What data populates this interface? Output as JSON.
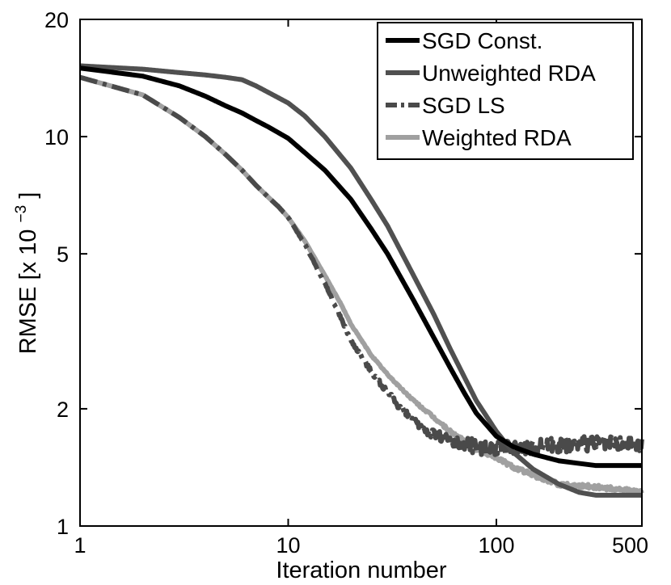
{
  "chart_data": {
    "type": "line",
    "title": "",
    "xlabel": "Iteration number",
    "ylabel_main": "RMSE [x 10",
    "ylabel_exp": "−3",
    "ylabel_close": "]",
    "xscale": "log",
    "yscale": "log",
    "xlim": [
      1,
      500
    ],
    "ylim": [
      1,
      20
    ],
    "grid": false,
    "legend_position": "top-right",
    "x_ticks": [
      {
        "value": 1,
        "label": "1"
      },
      {
        "value": 10,
        "label": "10"
      },
      {
        "value": 100,
        "label": "100"
      },
      {
        "value": 500,
        "label": "500"
      }
    ],
    "y_ticks": [
      {
        "value": 1,
        "label": "1"
      },
      {
        "value": 2,
        "label": "2"
      },
      {
        "value": 5,
        "label": "5"
      },
      {
        "value": 10,
        "label": "10"
      },
      {
        "value": 20,
        "label": "20"
      }
    ],
    "series": [
      {
        "name": "SGD Const.",
        "color": "#000000",
        "dash": "solid",
        "noise": 0,
        "x": [
          1,
          2,
          3,
          4,
          5,
          6,
          7,
          8,
          10,
          12,
          15,
          20,
          25,
          30,
          40,
          50,
          60,
          70,
          80,
          100,
          120,
          150,
          200,
          300,
          500
        ],
        "y": [
          15.0,
          14.3,
          13.5,
          12.7,
          12.0,
          11.5,
          11.0,
          10.6,
          9.9,
          9.1,
          8.2,
          6.9,
          5.8,
          5.0,
          3.8,
          3.05,
          2.55,
          2.2,
          1.95,
          1.7,
          1.6,
          1.53,
          1.47,
          1.43,
          1.43
        ]
      },
      {
        "name": "Unweighted RDA",
        "color": "#505050",
        "dash": "solid",
        "noise": 0,
        "x": [
          1,
          2,
          3,
          4,
          5,
          6,
          7,
          8,
          10,
          12,
          15,
          20,
          25,
          30,
          40,
          50,
          60,
          70,
          80,
          100,
          120,
          150,
          200,
          250,
          300,
          500
        ],
        "y": [
          15.2,
          14.9,
          14.6,
          14.4,
          14.2,
          14.0,
          13.5,
          13.0,
          12.2,
          11.3,
          10.0,
          8.3,
          6.9,
          5.9,
          4.4,
          3.5,
          2.85,
          2.42,
          2.1,
          1.75,
          1.55,
          1.4,
          1.28,
          1.22,
          1.2,
          1.2
        ]
      },
      {
        "name": "SGD LS",
        "color": "#4a4a4a",
        "dash": "dashdot",
        "noise": 0.045,
        "x": [
          1,
          2,
          3,
          4,
          5,
          6,
          7,
          8,
          9,
          10,
          12,
          15,
          18,
          20,
          25,
          30,
          35,
          40,
          50,
          60,
          80,
          100,
          150,
          200,
          300,
          500
        ],
        "y": [
          14.2,
          12.8,
          11.2,
          10.0,
          9.0,
          8.2,
          7.5,
          7.0,
          6.6,
          6.2,
          5.3,
          4.2,
          3.4,
          3.0,
          2.5,
          2.2,
          2.0,
          1.85,
          1.72,
          1.65,
          1.6,
          1.58,
          1.6,
          1.62,
          1.63,
          1.62
        ]
      },
      {
        "name": "Weighted RDA",
        "color": "#a0a0a0",
        "dash": "solid",
        "noise": 0.012,
        "x": [
          1,
          2,
          3,
          4,
          5,
          6,
          7,
          8,
          9,
          10,
          12,
          15,
          18,
          20,
          25,
          30,
          35,
          40,
          50,
          60,
          70,
          80,
          100,
          120,
          150,
          200,
          250,
          300,
          400,
          500
        ],
        "y": [
          14.2,
          12.8,
          11.2,
          10.0,
          9.0,
          8.2,
          7.5,
          7.0,
          6.6,
          6.2,
          5.4,
          4.4,
          3.7,
          3.3,
          2.75,
          2.45,
          2.25,
          2.1,
          1.9,
          1.75,
          1.65,
          1.58,
          1.5,
          1.42,
          1.35,
          1.28,
          1.27,
          1.26,
          1.24,
          1.22
        ]
      }
    ]
  }
}
